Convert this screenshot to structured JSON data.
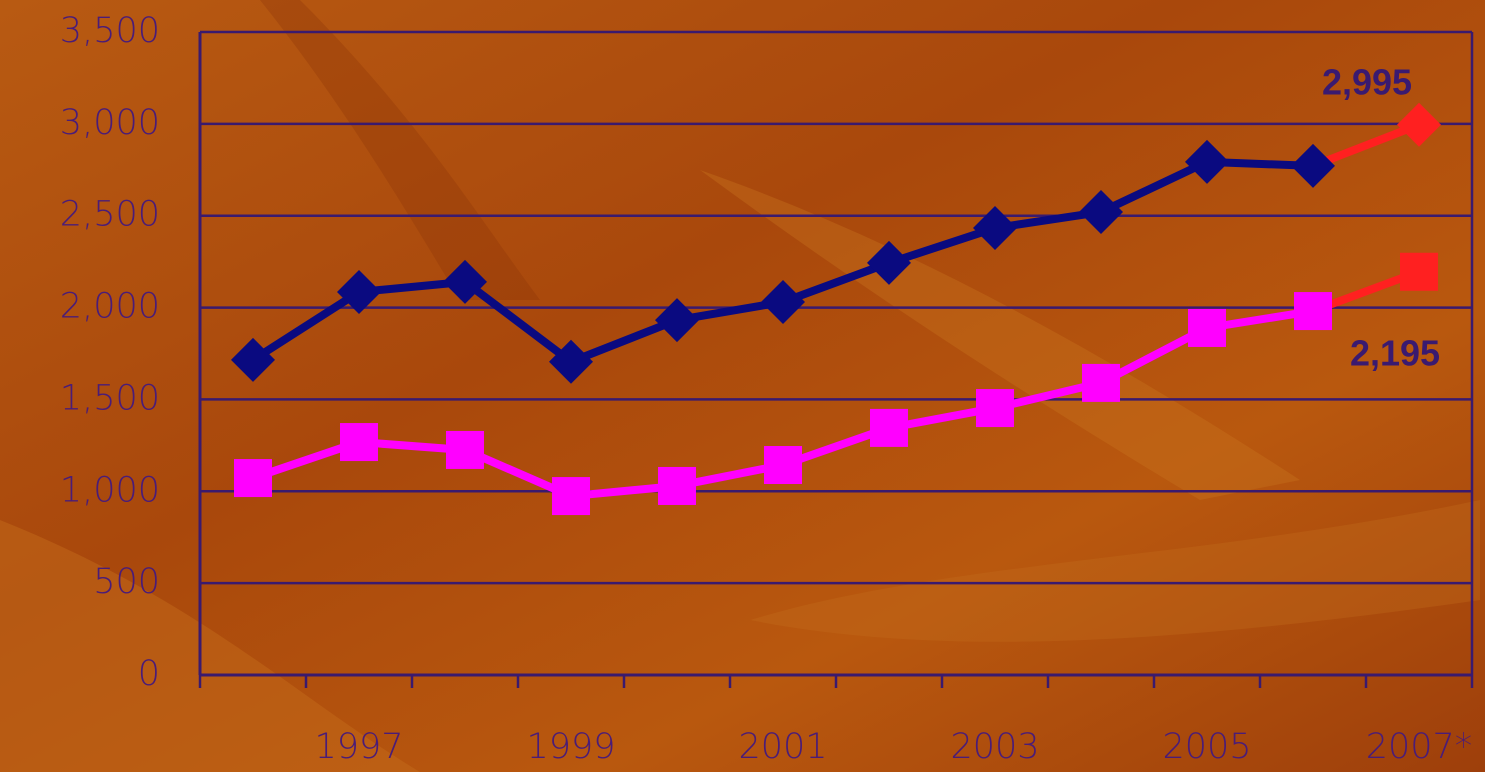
{
  "chart_data": {
    "type": "line",
    "categories": [
      null,
      "1997",
      null,
      "1999",
      null,
      "2001",
      null,
      "2003",
      null,
      "2005",
      null,
      "2007*"
    ],
    "series": [
      {
        "color": "#0a0a80",
        "marker": "diamond",
        "label_position": "above",
        "marker_colors": [
          "#0a0a80",
          "#0a0a80",
          "#0a0a80",
          "#0a0a80",
          "#0a0a80",
          "#0a0a80",
          "#0a0a80",
          "#0a0a80",
          "#0a0a80",
          "#0a0a80",
          "#0a0a80",
          "#ff2020"
        ],
        "values": [
          1715,
          2085,
          2140,
          1705,
          1932,
          2030,
          2243,
          2433,
          2520,
          2793,
          2771,
          2995
        ],
        "value_labels": [
          null,
          null,
          null,
          null,
          null,
          null,
          null,
          null,
          null,
          null,
          null,
          "2,995"
        ]
      },
      {
        "color": "#ff00ff",
        "marker": "square",
        "label_position": "below",
        "marker_colors": [
          "#ff00ff",
          "#ff00ff",
          "#ff00ff",
          "#ff00ff",
          "#ff00ff",
          "#ff00ff",
          "#ff00ff",
          "#ff00ff",
          "#ff00ff",
          "#ff00ff",
          "#ff00ff",
          "#ff2020"
        ],
        "values": [
          1072,
          1268,
          1225,
          974,
          1029,
          1143,
          1345,
          1453,
          1590,
          1889,
          1981,
          2195
        ],
        "value_labels": [
          null,
          null,
          null,
          null,
          null,
          null,
          null,
          null,
          null,
          null,
          null,
          "2,195"
        ]
      }
    ],
    "ylim": [
      0,
      3500
    ],
    "yticks": [
      0,
      500,
      {
        "value": 1000,
        "label": "1,000"
      },
      {
        "value": 1500,
        "label": "1,500"
      },
      {
        "value": 2000,
        "label": "2,000"
      },
      {
        "value": 2500,
        "label": "2,500"
      },
      {
        "value": 3000,
        "label": "3,000"
      },
      {
        "value": 3500,
        "label": "3,500"
      }
    ],
    "grid": true
  }
}
